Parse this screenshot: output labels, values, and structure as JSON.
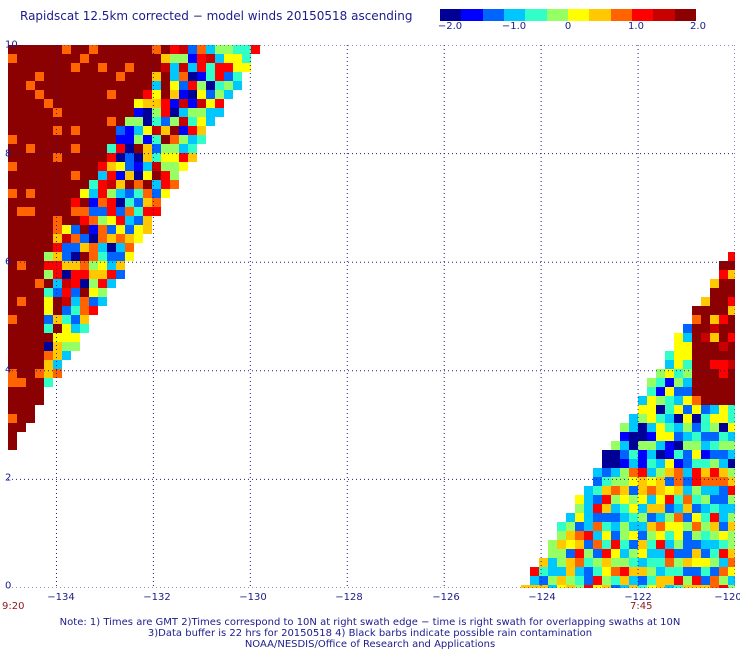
{
  "title": "Rapidscat 12.5km corrected − model winds 20150518 ascending",
  "colorbar": {
    "min": -2.0,
    "max": 2.0,
    "tick_labels": [
      "−2.0",
      "−1.0",
      "0",
      "1.0",
      "2.0"
    ],
    "tick_values": [
      -2.0,
      -1.0,
      0,
      1.0,
      2.0
    ],
    "colors": [
      "#000096",
      "#0000ff",
      "#0064ff",
      "#00c8ff",
      "#32ffc8",
      "#96ff64",
      "#ffff00",
      "#ffc800",
      "#ff6400",
      "#ff0000",
      "#c80000",
      "#8b0000"
    ]
  },
  "map": {
    "lon_range": [
      -135.0,
      -120.0
    ],
    "lat_range": [
      0,
      10
    ],
    "lon_ticks": [
      "−134",
      "−132",
      "−130",
      "−128",
      "−126",
      "−124",
      "−122",
      "−120"
    ],
    "lon_tick_values": [
      -134,
      -132,
      -130,
      -128,
      -126,
      -124,
      -122,
      -120
    ],
    "lat_ticks": [
      "10",
      "8",
      "6",
      "4",
      "2",
      "0"
    ],
    "lat_tick_values": [
      10,
      8,
      6,
      4,
      2,
      0
    ],
    "gridline_style": "dotted"
  },
  "time_labels": [
    {
      "text": "9:20",
      "lon": -135.0
    },
    {
      "text": "7:45",
      "lon": -122.0
    }
  ],
  "notes": [
    "Note: 1) Times are GMT 2)Times correspond to 10N at right swath edge − time is right swath for overlapping swaths at 10N",
    "3)Data buffer is 22 hrs for 20150518 4) Black barbs indicate possible rain contamination",
    "NOAA/NESDIS/Office of Research and Applications"
  ]
}
